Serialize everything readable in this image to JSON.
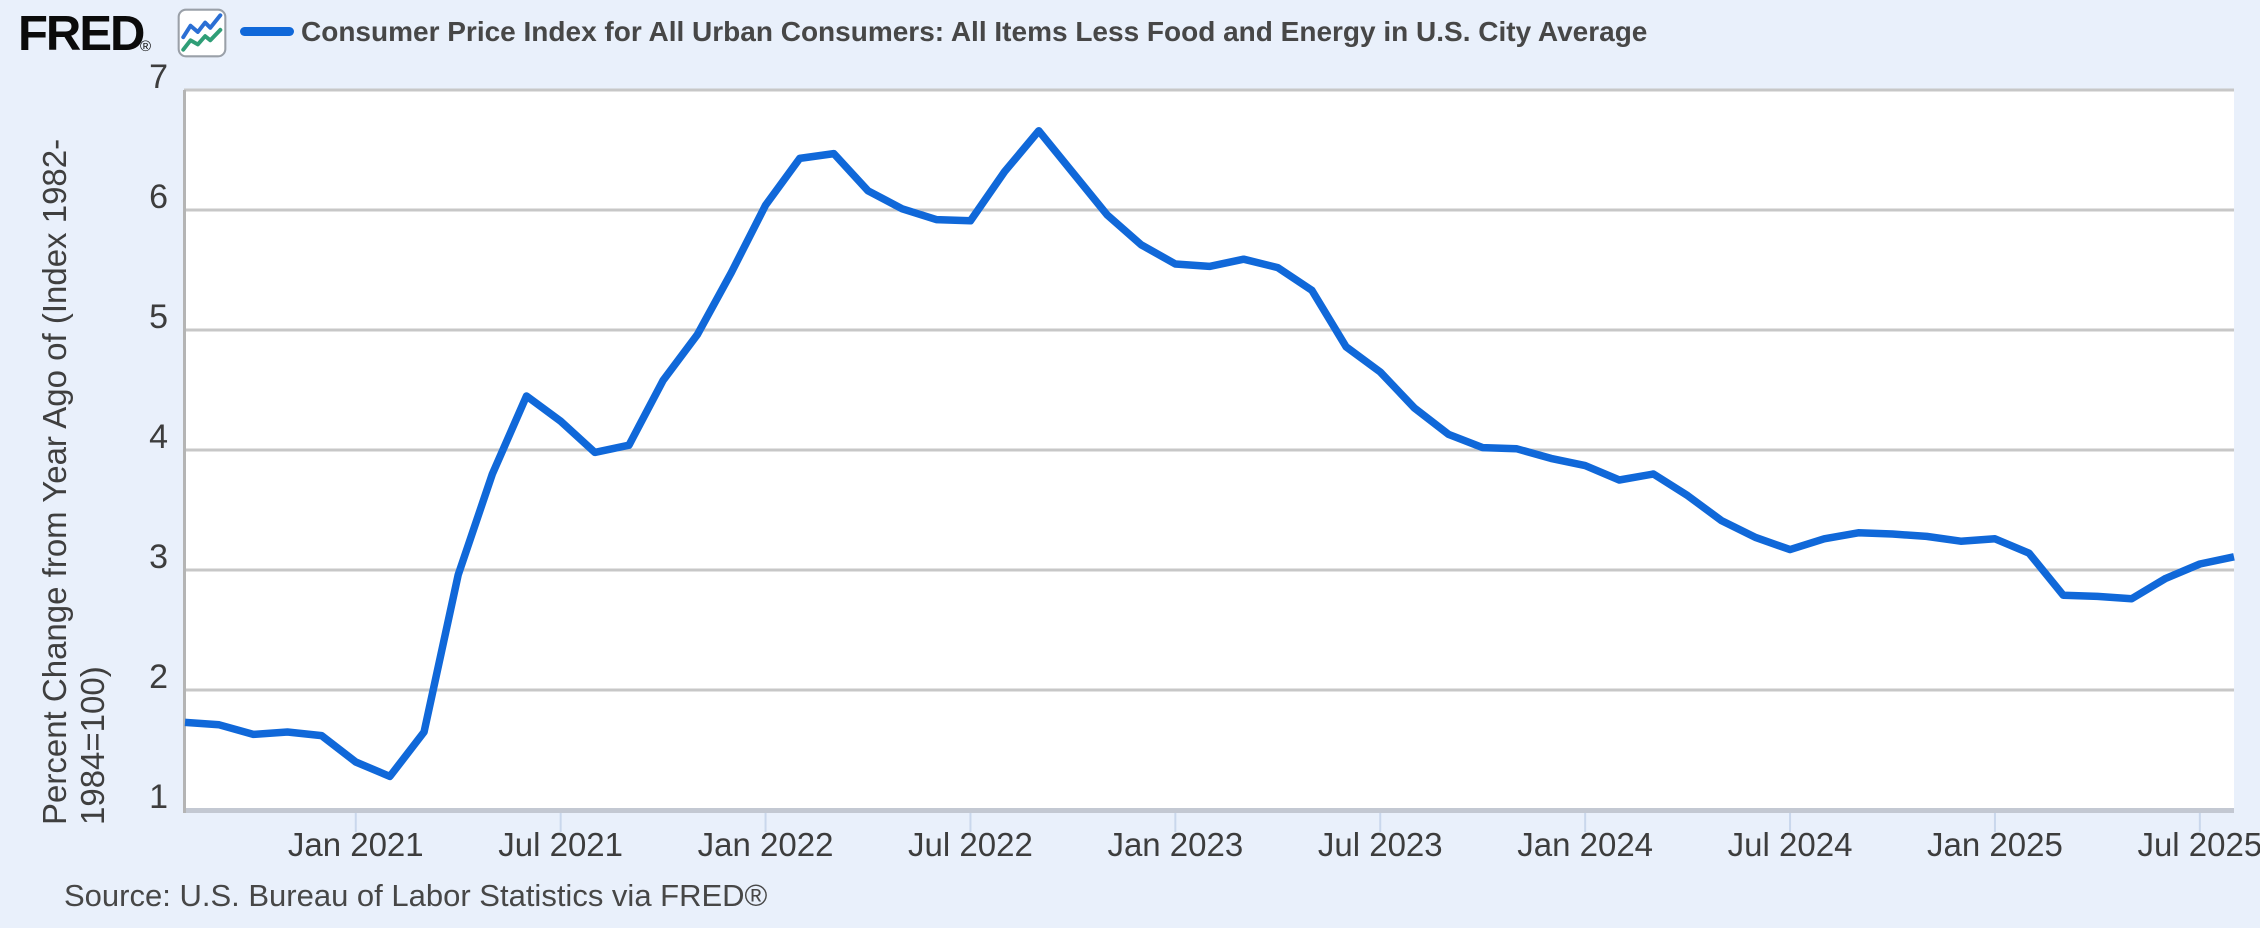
{
  "header": {
    "logo_text": "FRED",
    "logo_registered": "®",
    "series_label": "Consumer Price Index for All Urban Consumers: All Items Less Food and Energy in U.S. City Average"
  },
  "y_axis": {
    "title_line1": "Percent Change from Year Ago of (Index 1982-",
    "title_line2": "1984=100)",
    "tick_labels": [
      "7",
      "6",
      "5",
      "4",
      "3",
      "2",
      "1"
    ]
  },
  "x_axis": {
    "tick_labels": [
      "Jan 2021",
      "Jul 2021",
      "Jan 2022",
      "Jul 2022",
      "Jan 2023",
      "Jul 2023",
      "Jan 2024",
      "Jul 2024",
      "Jan 2025",
      "Jul 2025"
    ],
    "tick_months": [
      "2021-01",
      "2021-07",
      "2022-01",
      "2022-07",
      "2023-01",
      "2023-07",
      "2024-01",
      "2024-07",
      "2025-01",
      "2025-07"
    ]
  },
  "footer": {
    "source": "Source: U.S. Bureau of Labor Statistics via FRED®"
  },
  "colors": {
    "page_background": "#e9f0fb",
    "plot_background": "#ffffff",
    "line": "#1068d9",
    "gridline": "#c7c7c7",
    "left_axis": "#b4b4b4",
    "bottom_axis": "#c3c8d2",
    "tick_mark": "#c9d7ec",
    "text": "#3f3f3f",
    "icon_blue": "#2b6fd4",
    "icon_green": "#2f9e77"
  },
  "chart_data": {
    "type": "line",
    "title": "Consumer Price Index for All Urban Consumers: All Items Less Food and Energy in U.S. City Average",
    "xlabel": "",
    "ylabel": "Percent Change from Year Ago of (Index 1982-1984=100)",
    "ylim": [
      1,
      7
    ],
    "grid": "horizontal",
    "legend_position": "top",
    "x": [
      "2020-08",
      "2020-09",
      "2020-10",
      "2020-11",
      "2020-12",
      "2021-01",
      "2021-02",
      "2021-03",
      "2021-04",
      "2021-05",
      "2021-06",
      "2021-07",
      "2021-08",
      "2021-09",
      "2021-10",
      "2021-11",
      "2021-12",
      "2022-01",
      "2022-02",
      "2022-03",
      "2022-04",
      "2022-05",
      "2022-06",
      "2022-07",
      "2022-08",
      "2022-09",
      "2022-10",
      "2022-11",
      "2022-12",
      "2023-01",
      "2023-02",
      "2023-03",
      "2023-04",
      "2023-05",
      "2023-06",
      "2023-07",
      "2023-08",
      "2023-09",
      "2023-10",
      "2023-11",
      "2023-12",
      "2024-01",
      "2024-02",
      "2024-03",
      "2024-04",
      "2024-05",
      "2024-06",
      "2024-07",
      "2024-08",
      "2024-09",
      "2024-10",
      "2024-11",
      "2024-12",
      "2025-01",
      "2025-02",
      "2025-03",
      "2025-04",
      "2025-05",
      "2025-06",
      "2025-07",
      "2025-08"
    ],
    "values": [
      1.73,
      1.71,
      1.63,
      1.65,
      1.62,
      1.4,
      1.28,
      1.65,
      2.96,
      3.8,
      4.45,
      4.24,
      3.98,
      4.04,
      4.58,
      4.96,
      5.48,
      6.04,
      6.43,
      6.47,
      6.16,
      6.01,
      5.92,
      5.91,
      6.32,
      6.66,
      6.31,
      5.96,
      5.71,
      5.55,
      5.53,
      5.59,
      5.52,
      5.33,
      4.86,
      4.65,
      4.35,
      4.13,
      4.02,
      4.01,
      3.93,
      3.87,
      3.75,
      3.8,
      3.62,
      3.41,
      3.27,
      3.17,
      3.26,
      3.31,
      3.3,
      3.28,
      3.24,
      3.26,
      3.14,
      2.79,
      2.78,
      2.76,
      2.93,
      3.05,
      3.11
    ]
  }
}
